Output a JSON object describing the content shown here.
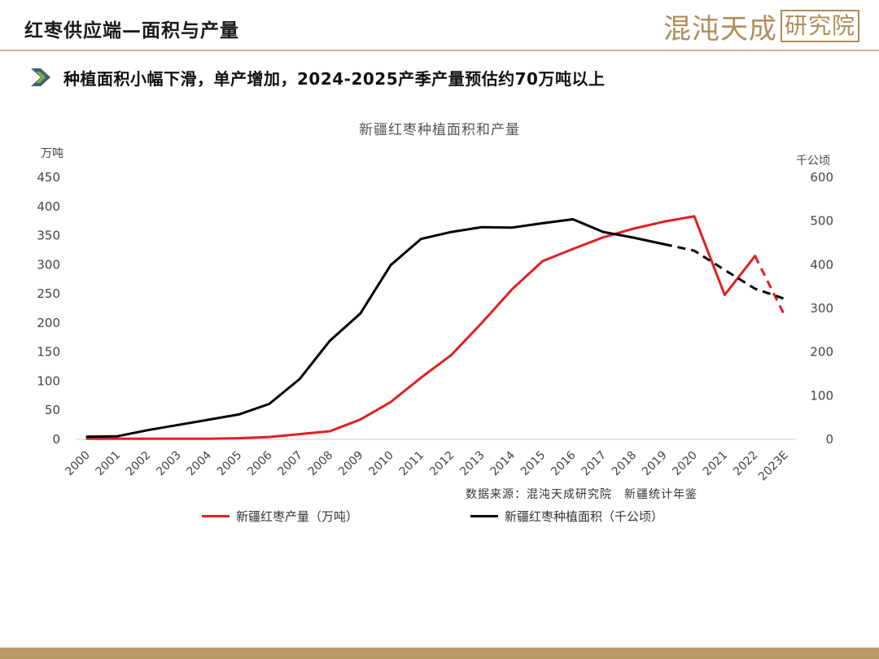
{
  "header": {
    "title": "红枣供应端—面积与产量",
    "brand": {
      "text_main": "混沌天成",
      "text_boxed": "研究院"
    }
  },
  "subtitle": "种植面积小幅下滑，单产增加，2024-2025产季产量预估约70万吨以上",
  "source_note": "数据来源：混沌天成研究院　新疆统计年鉴",
  "colors": {
    "accent": "#b69b68",
    "production": "#e02020",
    "area": "#000000",
    "chevron": "#3b5f7a",
    "chevron_light": "#7fae3f"
  },
  "chart_data": {
    "type": "line",
    "title": "新疆红枣种植面积和产量",
    "categories": [
      "2000",
      "2001",
      "2002",
      "2003",
      "2004",
      "2005",
      "2006",
      "2007",
      "2008",
      "2009",
      "2010",
      "2011",
      "2012",
      "2013",
      "2014",
      "2015",
      "2016",
      "2017",
      "2018",
      "2019",
      "2020",
      "2021",
      "2022",
      "2023E"
    ],
    "y_left": {
      "unit": "万吨",
      "range": [
        0,
        450
      ],
      "ticks": [
        "0",
        "50",
        "100",
        "150",
        "200",
        "250",
        "300",
        "350",
        "400",
        "450"
      ]
    },
    "y_right": {
      "unit": "千公顷",
      "range": [
        0,
        600
      ],
      "ticks": [
        "0",
        "100",
        "200",
        "300",
        "400",
        "500",
        "600"
      ]
    },
    "series": [
      {
        "name": "新疆红枣产量（万吨）",
        "axis": "left",
        "color": "#e02020",
        "values": [
          1,
          1,
          1,
          1,
          1,
          2,
          4,
          9,
          14,
          34,
          64,
          106,
          145,
          200,
          258,
          306,
          327,
          347,
          362,
          374,
          383,
          248,
          315,
          210
        ],
        "dashed_from_index": 22
      },
      {
        "name": "新疆红枣种植面积（千公顷）",
        "axis": "right",
        "color": "#000000",
        "values": [
          6,
          7,
          21,
          33,
          45,
          57,
          81,
          138,
          226,
          288,
          399,
          459,
          475,
          486,
          485,
          495,
          504,
          475,
          462,
          447,
          432,
          388,
          345,
          321
        ],
        "dashed_from_index": 19
      }
    ],
    "legend": "bottom",
    "grid": false
  }
}
